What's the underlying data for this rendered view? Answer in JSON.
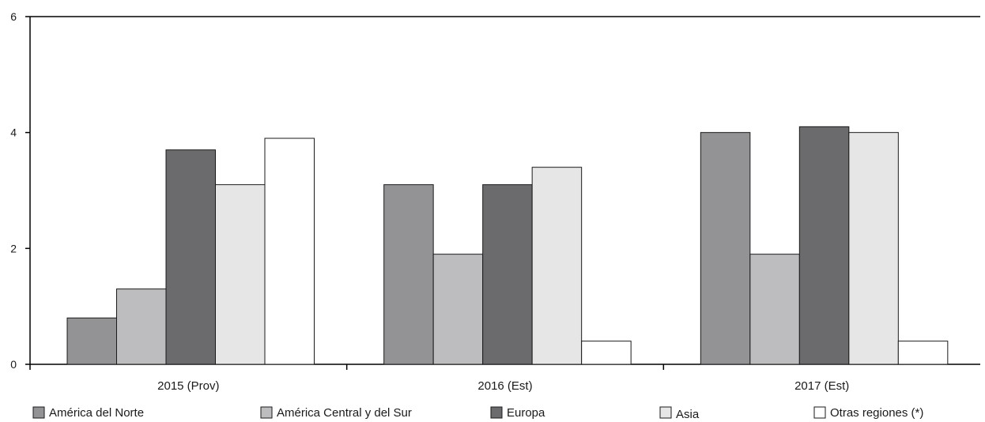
{
  "chart_data": {
    "type": "bar",
    "categories": [
      "2015 (Prov)",
      "2016 (Est)",
      "2017 (Est)"
    ],
    "series": [
      {
        "name": "América del Norte",
        "color": "#939396",
        "values": [
          0.8,
          3.1,
          4.0
        ]
      },
      {
        "name": "América Central y del Sur",
        "color": "#bdbdc0",
        "values": [
          1.3,
          1.9,
          1.9
        ]
      },
      {
        "name": "Europa",
        "color": "#6b6b6e",
        "values": [
          3.7,
          3.1,
          4.1
        ]
      },
      {
        "name": "Asia",
        "color": "#e6e6e7",
        "values": [
          3.1,
          3.4,
          4.0
        ]
      },
      {
        "name": "Otras regiones (*)",
        "color": "#ffffff",
        "values": [
          3.9,
          0.4,
          0.4
        ]
      }
    ],
    "ylim": [
      0,
      6
    ],
    "yticks": [
      0,
      2,
      4,
      6
    ],
    "grid": false,
    "legend_position": "bottom",
    "xlabel": "",
    "ylabel": ""
  }
}
